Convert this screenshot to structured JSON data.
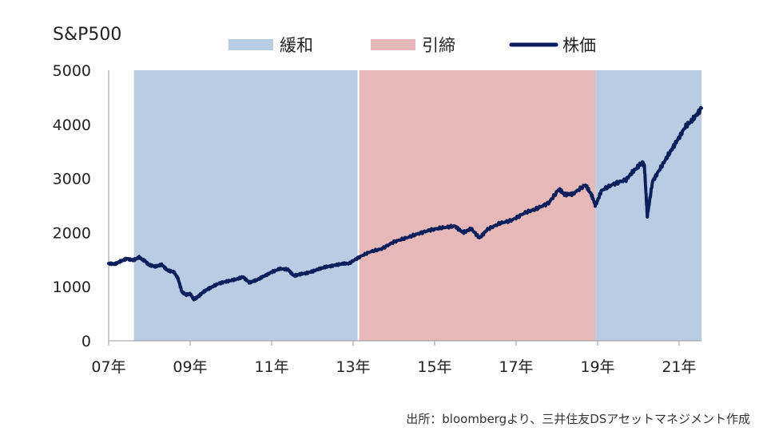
{
  "chart_data": {
    "type": "line",
    "title": "S&P500",
    "legend": {
      "placement": "top",
      "entries": [
        {
          "label": "緩和",
          "kind": "band",
          "color": "#b9cce4"
        },
        {
          "label": "引締",
          "kind": "band",
          "color": "#e6b9b8"
        },
        {
          "label": "株価",
          "kind": "line",
          "color": "#0b1f5c"
        }
      ]
    },
    "y_ticks": [
      "5000",
      "4000",
      "3000",
      "2000",
      "1000",
      "0"
    ],
    "ylim": [
      0,
      5000
    ],
    "x_ticks": [
      "07年",
      "09年",
      "11年",
      "13年",
      "15年",
      "17年",
      "19年",
      "21年"
    ],
    "xlim": [
      2007.0,
      2021.55
    ],
    "shaded_regions": [
      {
        "label": "緩和",
        "start": 2007.62,
        "end": 2013.13,
        "color": "#b9cce4"
      },
      {
        "label": "引締",
        "start": 2013.13,
        "end": 2018.95,
        "color": "#e6b9b8"
      },
      {
        "label": "緩和",
        "start": 2018.95,
        "end": 2021.55,
        "color": "#b9cce4"
      }
    ],
    "series": [
      {
        "name": "株価",
        "color": "#0b1f5c",
        "x": [
          2007.0,
          2007.15,
          2007.3,
          2007.45,
          2007.6,
          2007.75,
          2007.9,
          2008.0,
          2008.15,
          2008.3,
          2008.45,
          2008.6,
          2008.7,
          2008.8,
          2008.9,
          2009.0,
          2009.1,
          2009.2,
          2009.35,
          2009.5,
          2009.7,
          2009.9,
          2010.1,
          2010.3,
          2010.45,
          2010.6,
          2010.8,
          2011.0,
          2011.2,
          2011.4,
          2011.55,
          2011.7,
          2011.9,
          2012.1,
          2012.3,
          2012.5,
          2012.7,
          2012.9,
          2013.13,
          2013.4,
          2013.7,
          2014.0,
          2014.3,
          2014.6,
          2014.9,
          2015.2,
          2015.5,
          2015.7,
          2015.9,
          2016.1,
          2016.3,
          2016.6,
          2016.9,
          2017.2,
          2017.5,
          2017.8,
          2018.05,
          2018.2,
          2018.4,
          2018.7,
          2018.85,
          2018.95,
          2019.1,
          2019.4,
          2019.7,
          2019.9,
          2020.1,
          2020.15,
          2020.22,
          2020.35,
          2020.55,
          2020.75,
          2020.95,
          2021.15,
          2021.35,
          2021.55
        ],
        "values": [
          1430,
          1420,
          1470,
          1520,
          1490,
          1540,
          1470,
          1400,
          1370,
          1410,
          1300,
          1270,
          1160,
          900,
          850,
          870,
          760,
          820,
          920,
          980,
          1060,
          1100,
          1130,
          1180,
          1080,
          1110,
          1190,
          1270,
          1330,
          1320,
          1200,
          1230,
          1260,
          1310,
          1360,
          1390,
          1420,
          1430,
          1540,
          1640,
          1700,
          1830,
          1900,
          1980,
          2050,
          2090,
          2120,
          2000,
          2070,
          1900,
          2060,
          2170,
          2230,
          2360,
          2440,
          2550,
          2800,
          2700,
          2720,
          2880,
          2700,
          2500,
          2780,
          2900,
          2980,
          3150,
          3300,
          3220,
          2300,
          2950,
          3200,
          3450,
          3700,
          3950,
          4100,
          4300
        ]
      }
    ],
    "source": "出所：bloombergより、三井住友DSアセットマネジメント作成",
    "grid": "off"
  }
}
